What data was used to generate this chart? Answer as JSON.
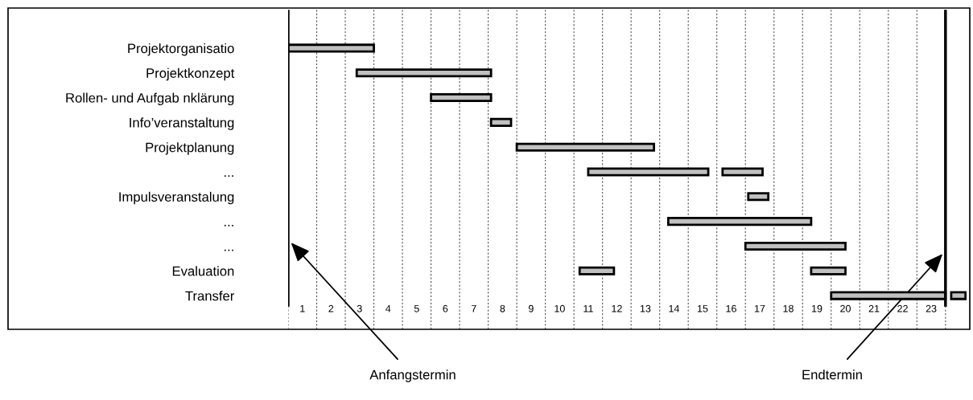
{
  "chart_data": {
    "type": "bar",
    "orientation": "horizontal",
    "categories": [
      "Projektorganisatio",
      "Projektkonzept",
      "Rollen- und Aufgab nklärung",
      "Info’veranstaltung",
      "Projektplanung",
      "...",
      "Impulsveranstalung",
      "...",
      "...",
      "Evaluation",
      "Transfer"
    ],
    "series": [
      {
        "color": "#c0c0c0",
        "base": [
          0,
          2.4,
          5.0,
          7.1,
          8.0,
          10.5,
          16.1,
          13.3,
          16.0,
          10.2,
          19.0
        ],
        "values": [
          3.0,
          4.7,
          2.1,
          0.7,
          4.8,
          4.2,
          0.7,
          5.0,
          3.5,
          1.2,
          4.0
        ]
      },
      {
        "color": "#c0c0c0",
        "base": [
          null,
          null,
          null,
          null,
          null,
          15.2,
          null,
          null,
          null,
          18.3,
          23.2
        ],
        "values": [
          null,
          null,
          null,
          null,
          null,
          1.4,
          null,
          null,
          null,
          1.2,
          0.5
        ]
      }
    ],
    "xlim": [
      0,
      23.85
    ],
    "xticks": [
      {
        "value": 0,
        "label": null
      },
      {
        "value": 1,
        "label": null
      },
      {
        "value": 2,
        "label": null
      },
      {
        "value": 3,
        "label": null
      },
      {
        "value": 4,
        "label": null
      },
      {
        "value": 5,
        "label": null
      },
      {
        "value": 6,
        "label": null
      },
      {
        "value": 7,
        "label": null
      },
      {
        "value": 8,
        "label": null
      },
      {
        "value": 9,
        "label": null
      },
      {
        "value": 10,
        "label": null
      },
      {
        "value": 11,
        "label": null
      },
      {
        "value": 12,
        "label": null
      },
      {
        "value": 13,
        "label": null
      },
      {
        "value": 14,
        "label": null
      },
      {
        "value": 15,
        "label": null
      },
      {
        "value": 16,
        "label": null
      },
      {
        "value": 17,
        "label": null
      },
      {
        "value": 18,
        "label": null
      },
      {
        "value": 19,
        "label": null
      },
      {
        "value": 20,
        "label": null
      },
      {
        "value": 21,
        "label": null
      },
      {
        "value": 22,
        "label": null
      },
      {
        "value": 23,
        "label": null
      },
      {
        "value": 0.5,
        "label": "1"
      },
      {
        "value": 1.5,
        "label": "2"
      },
      {
        "value": 2.5,
        "label": "3"
      },
      {
        "value": 3.5,
        "label": "4"
      },
      {
        "value": 4.5,
        "label": "5"
      },
      {
        "value": 5.5,
        "label": "6"
      },
      {
        "value": 6.5,
        "label": "7"
      },
      {
        "value": 7.5,
        "label": "8"
      },
      {
        "value": 8.5,
        "label": "9"
      },
      {
        "value": 9.5,
        "label": "10"
      },
      {
        "value": 10.5,
        "label": "11"
      },
      {
        "value": 11.5,
        "label": "12"
      },
      {
        "value": 12.5,
        "label": "13"
      },
      {
        "value": 13.5,
        "label": "14"
      },
      {
        "value": 14.5,
        "label": "15"
      },
      {
        "value": 15.5,
        "label": "16"
      },
      {
        "value": 16.5,
        "label": "17"
      },
      {
        "value": 17.5,
        "label": "18"
      },
      {
        "value": 18.5,
        "label": "19"
      },
      {
        "value": 19.5,
        "label": "20"
      },
      {
        "value": 20.5,
        "label": "21"
      },
      {
        "value": 21.5,
        "label": "22"
      },
      {
        "value": 22.5,
        "label": "23"
      }
    ],
    "grid": "x",
    "ref_lines": [
      {
        "axis": "x",
        "value": 0,
        "label": "Anfangstermin",
        "color": "#000000"
      },
      {
        "axis": "x",
        "value": 23,
        "label": "Endtermin",
        "color": "#000000"
      }
    ]
  }
}
